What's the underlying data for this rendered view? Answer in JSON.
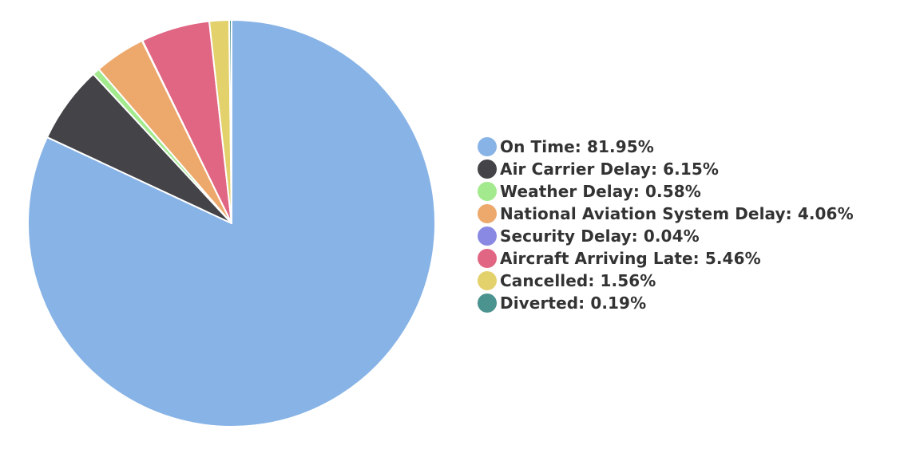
{
  "chart_data": {
    "type": "pie",
    "title": "",
    "legend_position": "right",
    "start_angle_deg": 0,
    "direction": "clockwise",
    "slices": [
      {
        "label": "On Time",
        "value": 81.95,
        "display": "On Time: 81.95%",
        "color": "#87b3e6"
      },
      {
        "label": "Air Carrier Delay",
        "value": 6.15,
        "display": "Air Carrier Delay: 6.15%",
        "color": "#434348"
      },
      {
        "label": "Weather Delay",
        "value": 0.58,
        "display": "Weather Delay: 0.58%",
        "color": "#a3ea8e"
      },
      {
        "label": "National Aviation System Delay",
        "value": 4.06,
        "display": "National Aviation System Delay: 4.06%",
        "color": "#eda86b"
      },
      {
        "label": "Security Delay",
        "value": 0.04,
        "display": "Security Delay: 0.04%",
        "color": "#8989e3"
      },
      {
        "label": "Aircraft Arriving Late",
        "value": 5.46,
        "display": "Aircraft Arriving Late: 5.46%",
        "color": "#e06683"
      },
      {
        "label": "Cancelled",
        "value": 1.56,
        "display": "Cancelled: 1.56%",
        "color": "#e3d16b"
      },
      {
        "label": "Diverted",
        "value": 0.19,
        "display": "Diverted: 0.19%",
        "color": "#4a938e"
      }
    ]
  }
}
